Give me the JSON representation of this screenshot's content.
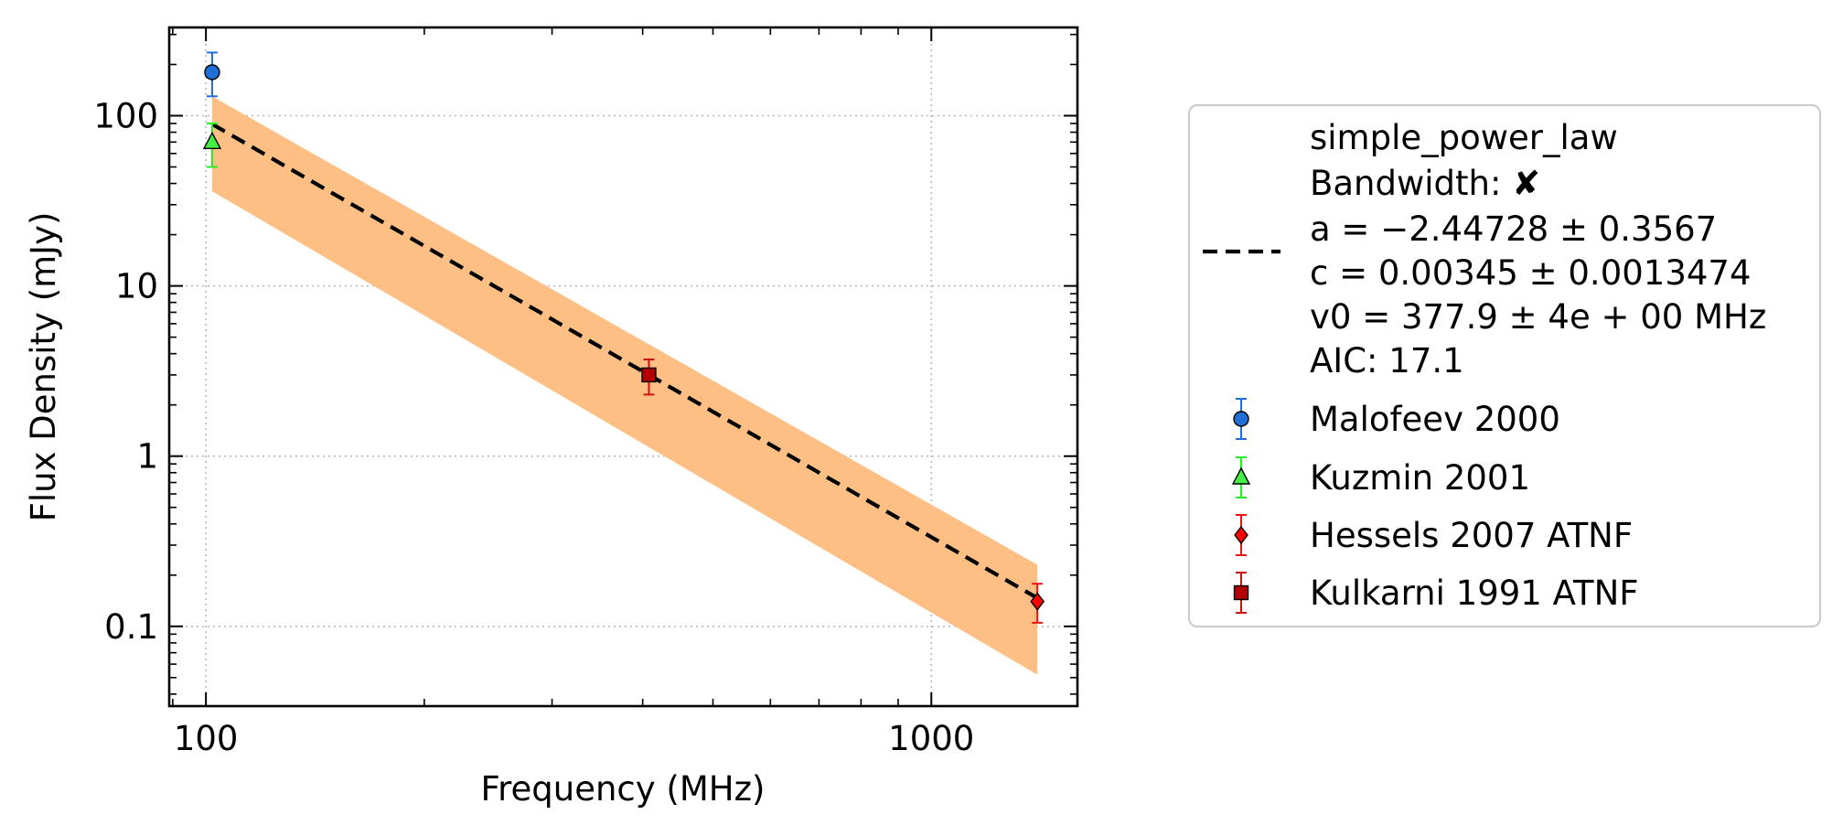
{
  "chart_data": {
    "type": "scatter",
    "title": "",
    "xlabel": "Frequency (MHz)",
    "ylabel": "Flux Density (mJy)",
    "xscale": "log",
    "yscale": "log",
    "xlim": [
      89,
      1590
    ],
    "ylim": [
      0.034,
      330
    ],
    "grid": true,
    "x_ticks": [
      {
        "value": 100,
        "label": "100"
      },
      {
        "value": 1000,
        "label": "1000"
      }
    ],
    "y_ticks": [
      {
        "value": 0.1,
        "label": "0.1"
      },
      {
        "value": 1,
        "label": "1"
      },
      {
        "value": 10,
        "label": "10"
      },
      {
        "value": 100,
        "label": "100"
      }
    ],
    "fit": {
      "model": "simple_power_law",
      "a": -2.44728,
      "c": 0.00345,
      "v0": 377.9,
      "x_range": [
        102,
        1400
      ],
      "band_low_x": [
        102,
        1400
      ],
      "band_low_y": [
        36,
        0.052
      ],
      "band_high_x": [
        102,
        1400
      ],
      "band_high_y": [
        130,
        0.23
      ],
      "line_color": "#000000",
      "band_color": "#fdbf84"
    },
    "series": [
      {
        "name": "Malofeev 2000",
        "marker": "circle",
        "color": "#1f6fd6",
        "fill": "#1f6fd6",
        "x": [
          102
        ],
        "y": [
          180
        ],
        "yerr_low": [
          130
        ],
        "yerr_high": [
          235
        ]
      },
      {
        "name": "Kuzmin 2001",
        "marker": "triangle",
        "color": "#22ee22",
        "fill": "#44ee44",
        "x": [
          102
        ],
        "y": [
          70
        ],
        "yerr_low": [
          50
        ],
        "yerr_high": [
          90
        ]
      },
      {
        "name": "Hessels 2007 ATNF",
        "marker": "diamond",
        "color": "#ee1111",
        "fill": "#ff0000",
        "x": [
          1400
        ],
        "y": [
          0.14
        ],
        "yerr_low": [
          0.105
        ],
        "yerr_high": [
          0.178
        ]
      },
      {
        "name": "Kulkarni 1991 ATNF",
        "marker": "square",
        "color": "#cc1111",
        "fill": "#b30000",
        "x": [
          408
        ],
        "y": [
          3.0
        ],
        "yerr_low": [
          2.3
        ],
        "yerr_high": [
          3.7
        ]
      }
    ],
    "legend": {
      "placement": "right",
      "fit_lines": [
        "simple_power_law",
        "Bandwidth: ✘",
        "a = −2.44728 ± 0.3567",
        "c = 0.00345 ± 0.0013474",
        "v0 = 377.9 ± 4e + 00 MHz",
        "AIC: 17.1"
      ]
    }
  }
}
